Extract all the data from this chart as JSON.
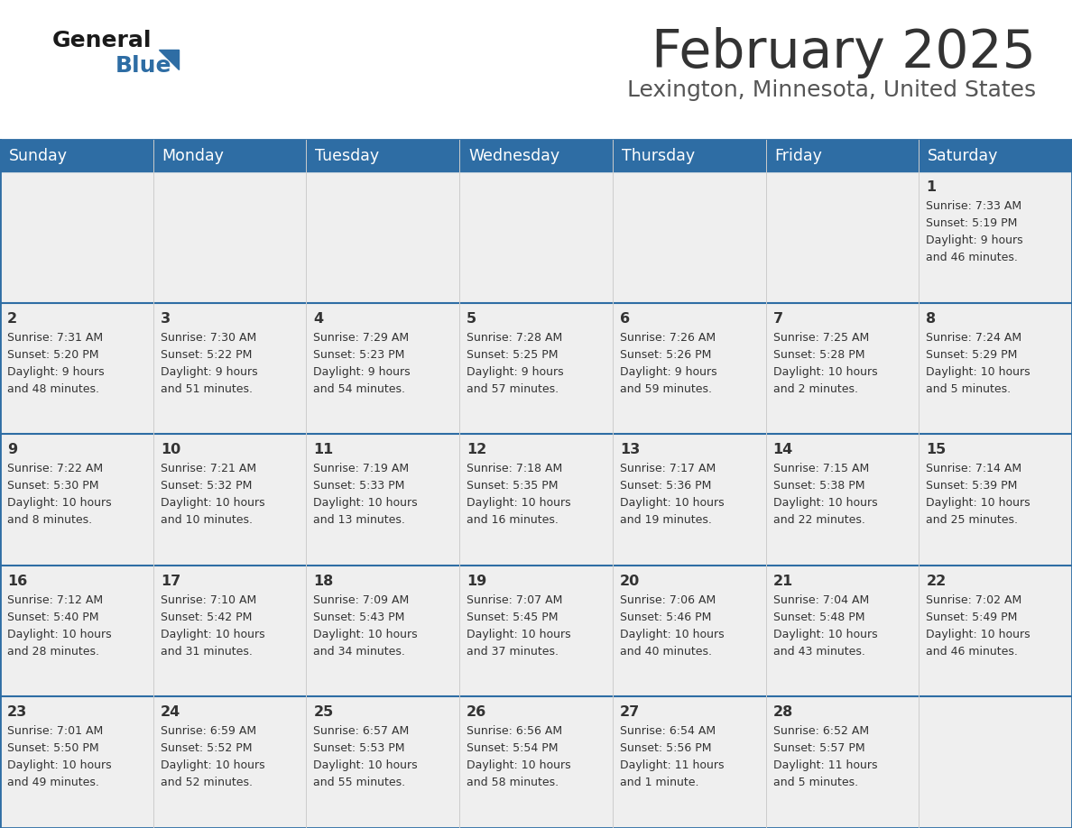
{
  "title": "February 2025",
  "subtitle": "Lexington, Minnesota, United States",
  "header_bg": "#2E6DA4",
  "header_text_color": "#FFFFFF",
  "cell_bg_light": "#EFEFEF",
  "day_names": [
    "Sunday",
    "Monday",
    "Tuesday",
    "Wednesday",
    "Thursday",
    "Friday",
    "Saturday"
  ],
  "title_color": "#333333",
  "subtitle_color": "#555555",
  "border_color": "#2E6DA4",
  "text_color": "#333333",
  "logo_general_color": "#1a1a1a",
  "logo_blue_color": "#2E6DA4",
  "days": [
    {
      "day": 1,
      "col": 6,
      "row": 0,
      "sunrise": "7:33 AM",
      "sunset": "5:19 PM",
      "daylight_hours": 9,
      "daylight_minutes": 46
    },
    {
      "day": 2,
      "col": 0,
      "row": 1,
      "sunrise": "7:31 AM",
      "sunset": "5:20 PM",
      "daylight_hours": 9,
      "daylight_minutes": 48
    },
    {
      "day": 3,
      "col": 1,
      "row": 1,
      "sunrise": "7:30 AM",
      "sunset": "5:22 PM",
      "daylight_hours": 9,
      "daylight_minutes": 51
    },
    {
      "day": 4,
      "col": 2,
      "row": 1,
      "sunrise": "7:29 AM",
      "sunset": "5:23 PM",
      "daylight_hours": 9,
      "daylight_minutes": 54
    },
    {
      "day": 5,
      "col": 3,
      "row": 1,
      "sunrise": "7:28 AM",
      "sunset": "5:25 PM",
      "daylight_hours": 9,
      "daylight_minutes": 57
    },
    {
      "day": 6,
      "col": 4,
      "row": 1,
      "sunrise": "7:26 AM",
      "sunset": "5:26 PM",
      "daylight_hours": 9,
      "daylight_minutes": 59
    },
    {
      "day": 7,
      "col": 5,
      "row": 1,
      "sunrise": "7:25 AM",
      "sunset": "5:28 PM",
      "daylight_hours": 10,
      "daylight_minutes": 2
    },
    {
      "day": 8,
      "col": 6,
      "row": 1,
      "sunrise": "7:24 AM",
      "sunset": "5:29 PM",
      "daylight_hours": 10,
      "daylight_minutes": 5
    },
    {
      "day": 9,
      "col": 0,
      "row": 2,
      "sunrise": "7:22 AM",
      "sunset": "5:30 PM",
      "daylight_hours": 10,
      "daylight_minutes": 8
    },
    {
      "day": 10,
      "col": 1,
      "row": 2,
      "sunrise": "7:21 AM",
      "sunset": "5:32 PM",
      "daylight_hours": 10,
      "daylight_minutes": 10
    },
    {
      "day": 11,
      "col": 2,
      "row": 2,
      "sunrise": "7:19 AM",
      "sunset": "5:33 PM",
      "daylight_hours": 10,
      "daylight_minutes": 13
    },
    {
      "day": 12,
      "col": 3,
      "row": 2,
      "sunrise": "7:18 AM",
      "sunset": "5:35 PM",
      "daylight_hours": 10,
      "daylight_minutes": 16
    },
    {
      "day": 13,
      "col": 4,
      "row": 2,
      "sunrise": "7:17 AM",
      "sunset": "5:36 PM",
      "daylight_hours": 10,
      "daylight_minutes": 19
    },
    {
      "day": 14,
      "col": 5,
      "row": 2,
      "sunrise": "7:15 AM",
      "sunset": "5:38 PM",
      "daylight_hours": 10,
      "daylight_minutes": 22
    },
    {
      "day": 15,
      "col": 6,
      "row": 2,
      "sunrise": "7:14 AM",
      "sunset": "5:39 PM",
      "daylight_hours": 10,
      "daylight_minutes": 25
    },
    {
      "day": 16,
      "col": 0,
      "row": 3,
      "sunrise": "7:12 AM",
      "sunset": "5:40 PM",
      "daylight_hours": 10,
      "daylight_minutes": 28
    },
    {
      "day": 17,
      "col": 1,
      "row": 3,
      "sunrise": "7:10 AM",
      "sunset": "5:42 PM",
      "daylight_hours": 10,
      "daylight_minutes": 31
    },
    {
      "day": 18,
      "col": 2,
      "row": 3,
      "sunrise": "7:09 AM",
      "sunset": "5:43 PM",
      "daylight_hours": 10,
      "daylight_minutes": 34
    },
    {
      "day": 19,
      "col": 3,
      "row": 3,
      "sunrise": "7:07 AM",
      "sunset": "5:45 PM",
      "daylight_hours": 10,
      "daylight_minutes": 37
    },
    {
      "day": 20,
      "col": 4,
      "row": 3,
      "sunrise": "7:06 AM",
      "sunset": "5:46 PM",
      "daylight_hours": 10,
      "daylight_minutes": 40
    },
    {
      "day": 21,
      "col": 5,
      "row": 3,
      "sunrise": "7:04 AM",
      "sunset": "5:48 PM",
      "daylight_hours": 10,
      "daylight_minutes": 43
    },
    {
      "day": 22,
      "col": 6,
      "row": 3,
      "sunrise": "7:02 AM",
      "sunset": "5:49 PM",
      "daylight_hours": 10,
      "daylight_minutes": 46
    },
    {
      "day": 23,
      "col": 0,
      "row": 4,
      "sunrise": "7:01 AM",
      "sunset": "5:50 PM",
      "daylight_hours": 10,
      "daylight_minutes": 49
    },
    {
      "day": 24,
      "col": 1,
      "row": 4,
      "sunrise": "6:59 AM",
      "sunset": "5:52 PM",
      "daylight_hours": 10,
      "daylight_minutes": 52
    },
    {
      "day": 25,
      "col": 2,
      "row": 4,
      "sunrise": "6:57 AM",
      "sunset": "5:53 PM",
      "daylight_hours": 10,
      "daylight_minutes": 55
    },
    {
      "day": 26,
      "col": 3,
      "row": 4,
      "sunrise": "6:56 AM",
      "sunset": "5:54 PM",
      "daylight_hours": 10,
      "daylight_minutes": 58
    },
    {
      "day": 27,
      "col": 4,
      "row": 4,
      "sunrise": "6:54 AM",
      "sunset": "5:56 PM",
      "daylight_hours": 11,
      "daylight_minutes": 1
    },
    {
      "day": 28,
      "col": 5,
      "row": 4,
      "sunrise": "6:52 AM",
      "sunset": "5:57 PM",
      "daylight_hours": 11,
      "daylight_minutes": 5
    }
  ]
}
